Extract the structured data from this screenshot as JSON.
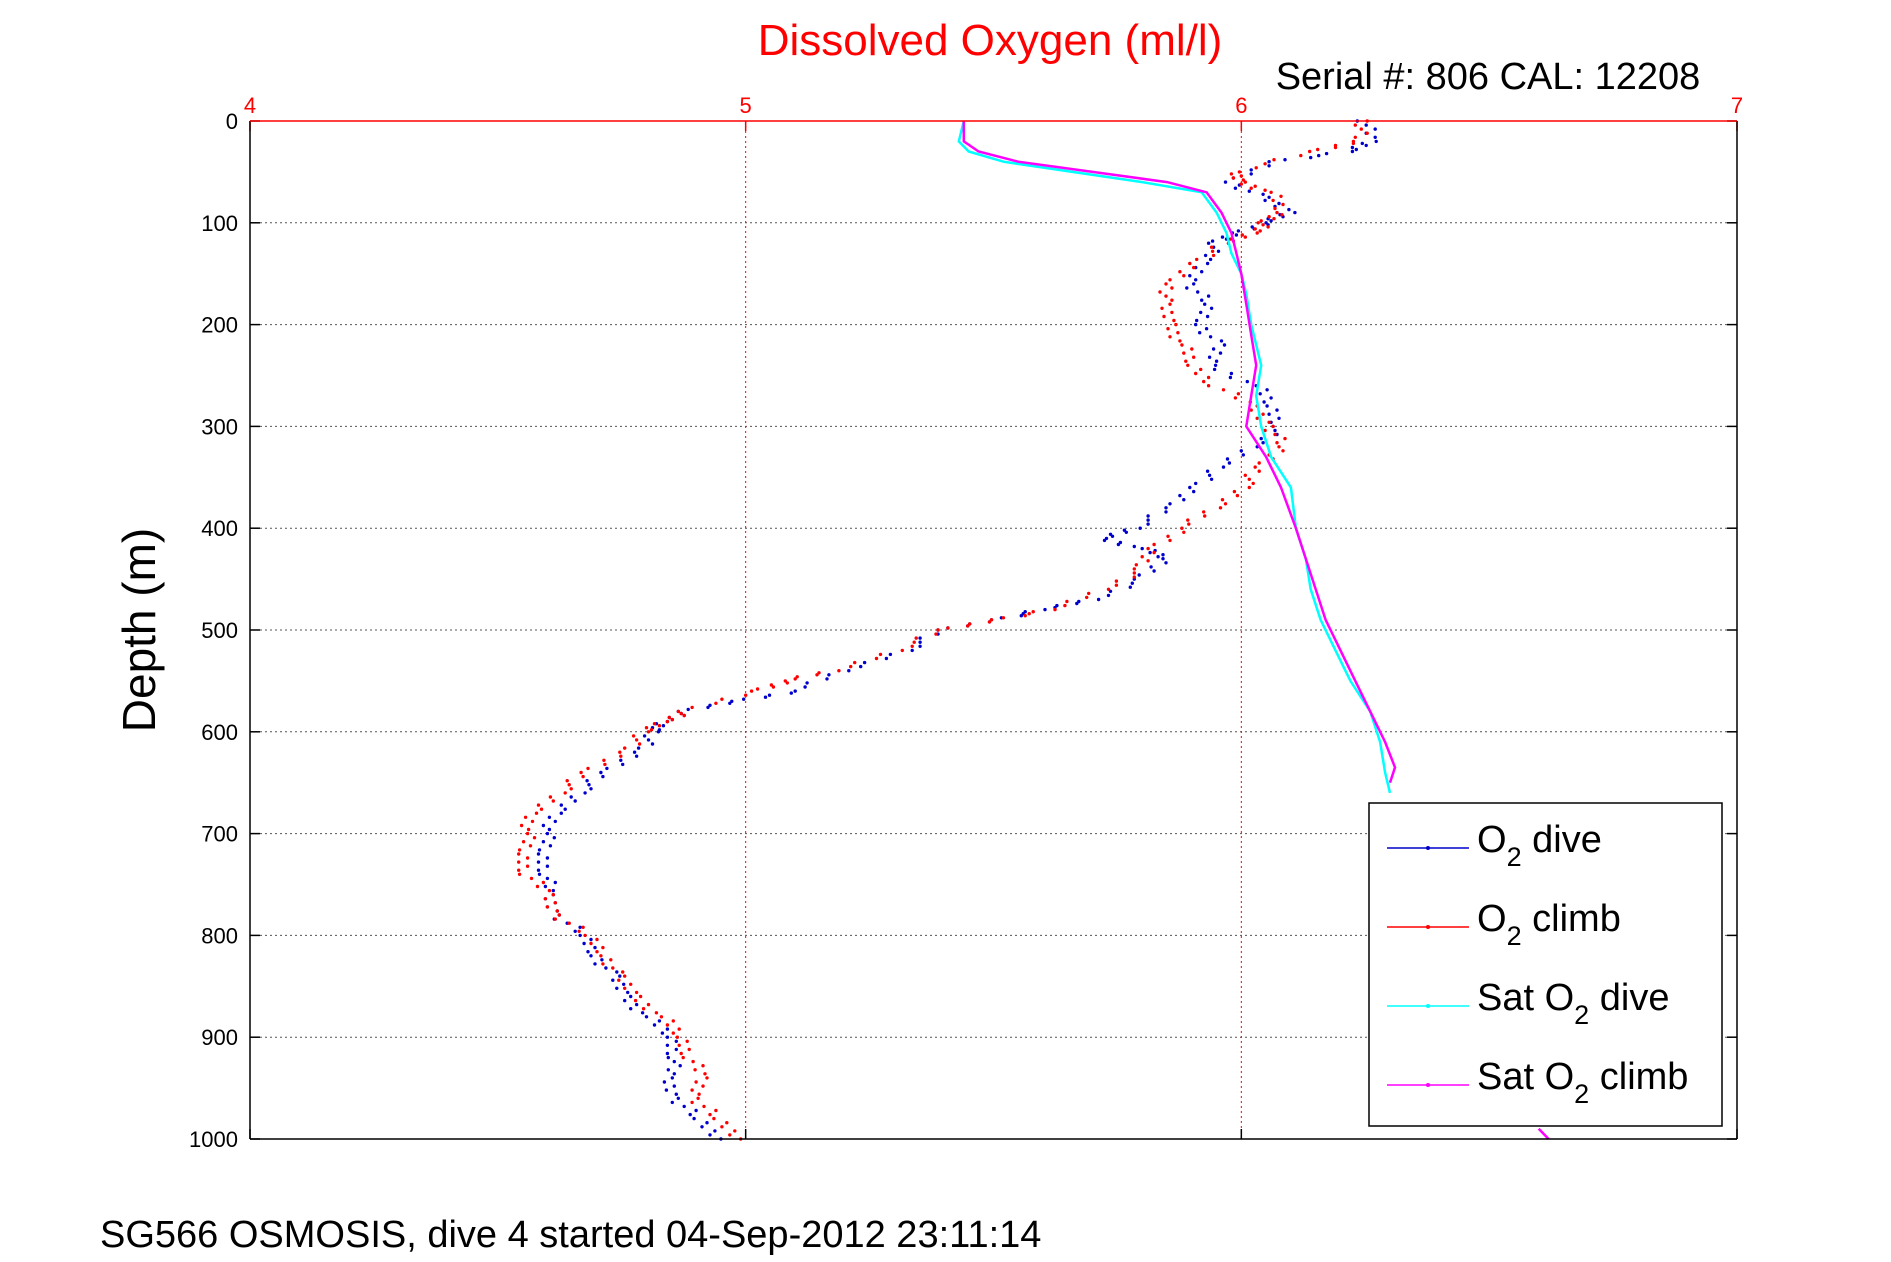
{
  "chart_data": {
    "type": "scatter",
    "title": "Dissolved Oxygen (ml/l)",
    "subtitle": "Serial #: 806  CAL: 12208",
    "footer": "SG566 OSMOSIS, dive 4 started 04-Sep-2012 23:11:14",
    "xlabel": "",
    "ylabel": "Depth (m)",
    "xlim": [
      4,
      7
    ],
    "ylim": [
      0,
      1000
    ],
    "y_reversed": true,
    "x_axis_position": "top",
    "grid": true,
    "legend_position": "bottom-right",
    "x_ticks": [
      "4",
      "5",
      "6",
      "7"
    ],
    "y_ticks": [
      "0",
      "100",
      "200",
      "300",
      "400",
      "500",
      "600",
      "700",
      "800",
      "900",
      "1000"
    ],
    "colors": {
      "axis": "#ff0000",
      "grid": "#000000",
      "text": "#000000"
    },
    "series": [
      {
        "name": "O2 dive",
        "label_main": "O",
        "label_sub": "2",
        "label_rest": " dive",
        "color": "#0000cc",
        "style": "dots",
        "points": [
          [
            6.25,
            0
          ],
          [
            6.26,
            20
          ],
          [
            6.22,
            30
          ],
          [
            6.06,
            40
          ],
          [
            5.98,
            60
          ],
          [
            6.04,
            75
          ],
          [
            6.1,
            90
          ],
          [
            6.05,
            100
          ],
          [
            5.99,
            110
          ],
          [
            5.95,
            120
          ],
          [
            5.92,
            140
          ],
          [
            5.9,
            160
          ],
          [
            5.93,
            180
          ],
          [
            5.92,
            200
          ],
          [
            5.95,
            220
          ],
          [
            5.94,
            240
          ],
          [
            6.03,
            260
          ],
          [
            6.06,
            280
          ],
          [
            6.08,
            300
          ],
          [
            6.02,
            320
          ],
          [
            5.96,
            340
          ],
          [
            5.9,
            360
          ],
          [
            5.86,
            380
          ],
          [
            5.78,
            400
          ],
          [
            5.72,
            410
          ],
          [
            5.8,
            420
          ],
          [
            5.85,
            430
          ],
          [
            5.8,
            450
          ],
          [
            5.7,
            470
          ],
          [
            5.6,
            480
          ],
          [
            5.5,
            490
          ],
          [
            5.4,
            500
          ],
          [
            5.32,
            520
          ],
          [
            5.2,
            540
          ],
          [
            5.1,
            560
          ],
          [
            4.98,
            570
          ],
          [
            4.88,
            580
          ],
          [
            4.83,
            590
          ],
          [
            4.82,
            600
          ],
          [
            4.78,
            620
          ],
          [
            4.72,
            640
          ],
          [
            4.66,
            660
          ],
          [
            4.62,
            680
          ],
          [
            4.6,
            700
          ],
          [
            4.59,
            720
          ],
          [
            4.6,
            740
          ],
          [
            4.6,
            760
          ],
          [
            4.62,
            780
          ],
          [
            4.67,
            800
          ],
          [
            4.7,
            820
          ],
          [
            4.73,
            840
          ],
          [
            4.76,
            860
          ],
          [
            4.8,
            880
          ],
          [
            4.85,
            900
          ],
          [
            4.86,
            920
          ],
          [
            4.84,
            940
          ],
          [
            4.86,
            960
          ],
          [
            4.9,
            980
          ],
          [
            4.95,
            1000
          ]
        ]
      },
      {
        "name": "O2 climb",
        "label_main": "O",
        "label_sub": "2",
        "label_rest": " climb",
        "color": "#ff0000",
        "style": "dots",
        "points": [
          [
            6.25,
            0
          ],
          [
            6.23,
            20
          ],
          [
            6.15,
            30
          ],
          [
            5.98,
            50
          ],
          [
            6.0,
            60
          ],
          [
            6.06,
            70
          ],
          [
            6.08,
            90
          ],
          [
            6.05,
            100
          ],
          [
            6.02,
            110
          ],
          [
            5.97,
            120
          ],
          [
            5.9,
            140
          ],
          [
            5.86,
            160
          ],
          [
            5.84,
            180
          ],
          [
            5.86,
            200
          ],
          [
            5.88,
            220
          ],
          [
            5.9,
            240
          ],
          [
            5.95,
            260
          ],
          [
            6.02,
            280
          ],
          [
            6.06,
            300
          ],
          [
            6.08,
            320
          ],
          [
            6.04,
            340
          ],
          [
            6.0,
            360
          ],
          [
            5.95,
            380
          ],
          [
            5.88,
            400
          ],
          [
            5.82,
            420
          ],
          [
            5.8,
            440
          ],
          [
            5.72,
            460
          ],
          [
            5.62,
            480
          ],
          [
            5.5,
            490
          ],
          [
            5.4,
            500
          ],
          [
            5.3,
            520
          ],
          [
            5.18,
            540
          ],
          [
            5.08,
            550
          ],
          [
            5.02,
            560
          ],
          [
            4.88,
            580
          ],
          [
            4.83,
            590
          ],
          [
            4.8,
            600
          ],
          [
            4.75,
            620
          ],
          [
            4.68,
            640
          ],
          [
            4.62,
            660
          ],
          [
            4.57,
            680
          ],
          [
            4.56,
            700
          ],
          [
            4.55,
            720
          ],
          [
            4.56,
            740
          ],
          [
            4.6,
            760
          ],
          [
            4.62,
            780
          ],
          [
            4.68,
            800
          ],
          [
            4.72,
            820
          ],
          [
            4.74,
            840
          ],
          [
            4.78,
            860
          ],
          [
            4.83,
            880
          ],
          [
            4.87,
            900
          ],
          [
            4.89,
            920
          ],
          [
            4.91,
            940
          ],
          [
            4.9,
            960
          ],
          [
            4.94,
            980
          ],
          [
            4.99,
            1000
          ]
        ]
      },
      {
        "name": "Sat O2 dive",
        "label_main": "Sat O",
        "label_sub": "2",
        "label_rest": " dive",
        "color": "#00ffff",
        "style": "line",
        "points": [
          [
            5.44,
            0
          ],
          [
            5.43,
            20
          ],
          [
            5.45,
            30
          ],
          [
            5.52,
            40
          ],
          [
            5.8,
            60
          ],
          [
            5.92,
            70
          ],
          [
            5.95,
            90
          ],
          [
            5.97,
            110
          ],
          [
            5.98,
            130
          ],
          [
            6.0,
            150
          ],
          [
            6.01,
            170
          ],
          [
            6.02,
            200
          ],
          [
            6.04,
            240
          ],
          [
            6.03,
            270
          ],
          [
            6.04,
            300
          ],
          [
            6.06,
            330
          ],
          [
            6.1,
            360
          ],
          [
            6.11,
            400
          ],
          [
            6.13,
            430
          ],
          [
            6.14,
            460
          ],
          [
            6.16,
            490
          ],
          [
            6.19,
            520
          ],
          [
            6.22,
            550
          ],
          [
            6.26,
            580
          ],
          [
            6.28,
            610
          ],
          [
            6.29,
            640
          ],
          [
            6.3,
            660
          ]
        ]
      },
      {
        "name": "Sat O2 climb",
        "label_main": "Sat O",
        "label_sub": "2",
        "label_rest": " climb",
        "color": "#ff00ff",
        "style": "line",
        "points": [
          [
            5.44,
            0
          ],
          [
            5.44,
            20
          ],
          [
            5.47,
            30
          ],
          [
            5.55,
            40
          ],
          [
            5.85,
            60
          ],
          [
            5.93,
            70
          ],
          [
            5.96,
            90
          ],
          [
            5.98,
            110
          ],
          [
            5.99,
            130
          ],
          [
            6.0,
            150
          ],
          [
            6.01,
            180
          ],
          [
            6.02,
            210
          ],
          [
            6.03,
            240
          ],
          [
            6.02,
            270
          ],
          [
            6.01,
            300
          ],
          [
            6.05,
            330
          ],
          [
            6.08,
            360
          ],
          [
            6.11,
            400
          ],
          [
            6.13,
            430
          ],
          [
            6.15,
            460
          ],
          [
            6.17,
            490
          ],
          [
            6.2,
            520
          ],
          [
            6.23,
            550
          ],
          [
            6.26,
            580
          ],
          [
            6.29,
            610
          ],
          [
            6.31,
            635
          ],
          [
            6.3,
            650
          ]
        ]
      },
      {
        "name": "Sat O2 climb (deep)",
        "label_main": "",
        "label_sub": "",
        "label_rest": "",
        "color": "#ff00ff",
        "style": "line",
        "in_legend": false,
        "points": [
          [
            6.6,
            990
          ],
          [
            6.62,
            1000
          ]
        ]
      }
    ]
  }
}
